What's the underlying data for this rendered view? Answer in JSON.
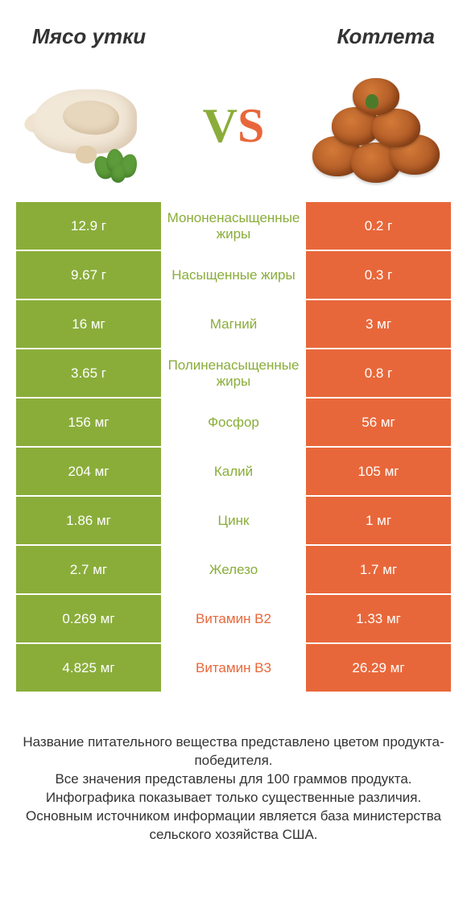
{
  "colors": {
    "green": "#8aad3a",
    "orange": "#e8673a",
    "text": "#333333",
    "white": "#ffffff"
  },
  "header": {
    "left": "Мясо утки",
    "right": "Котлета"
  },
  "vs": {
    "v": "V",
    "s": "S"
  },
  "rows": [
    {
      "left": "12.9 г",
      "label": "Мононенасыщенные жиры",
      "right": "0.2 г",
      "winner": "left"
    },
    {
      "left": "9.67 г",
      "label": "Насыщенные жиры",
      "right": "0.3 г",
      "winner": "left"
    },
    {
      "left": "16 мг",
      "label": "Магний",
      "right": "3 мг",
      "winner": "left"
    },
    {
      "left": "3.65 г",
      "label": "Полиненасыщенные жиры",
      "right": "0.8 г",
      "winner": "left"
    },
    {
      "left": "156 мг",
      "label": "Фосфор",
      "right": "56 мг",
      "winner": "left"
    },
    {
      "left": "204 мг",
      "label": "Калий",
      "right": "105 мг",
      "winner": "left"
    },
    {
      "left": "1.86 мг",
      "label": "Цинк",
      "right": "1 мг",
      "winner": "left"
    },
    {
      "left": "2.7 мг",
      "label": "Железо",
      "right": "1.7 мг",
      "winner": "left"
    },
    {
      "left": "0.269 мг",
      "label": "Витамин B2",
      "right": "1.33 мг",
      "winner": "right"
    },
    {
      "left": "4.825 мг",
      "label": "Витамин B3",
      "right": "26.29 мг",
      "winner": "right"
    }
  ],
  "footer": {
    "line1": "Название питательного вещества представлено цветом продукта-победителя.",
    "line2": "Все значения представлены для 100 граммов продукта.",
    "line3": "Инфографика показывает только существенные различия.",
    "line4": "Основным источником информации является база министерства сельского хозяйства США."
  }
}
